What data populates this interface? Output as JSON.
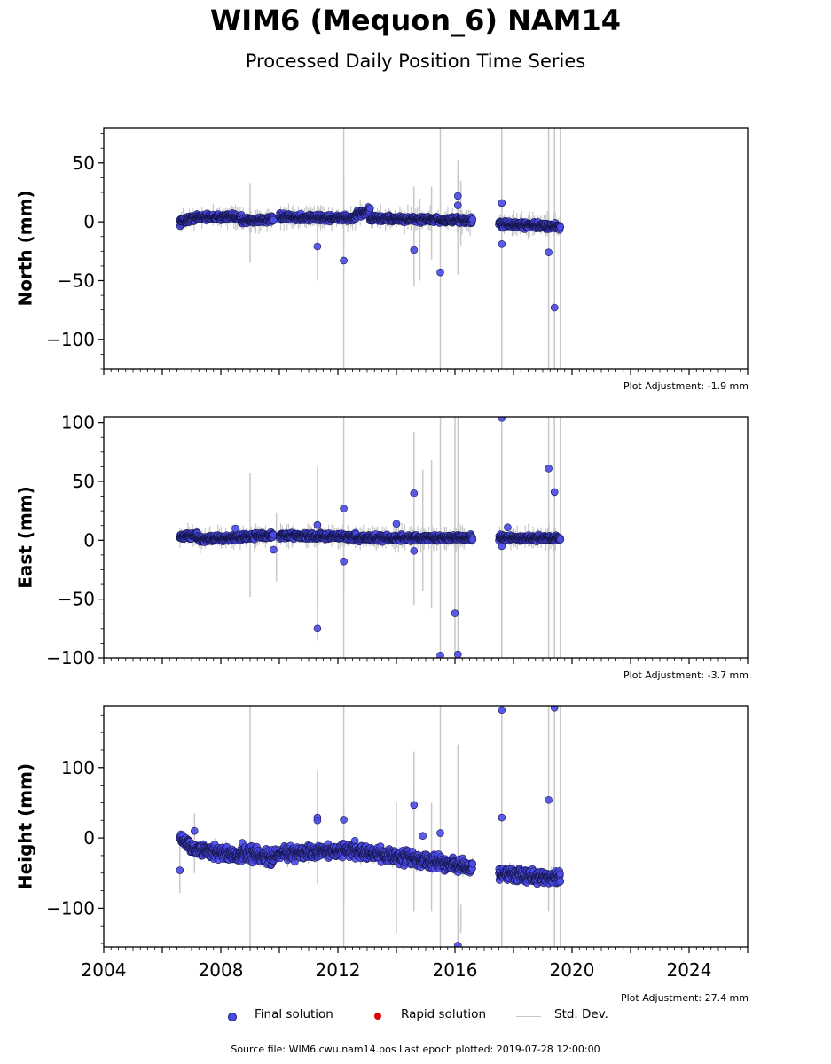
{
  "title": "WIM6 (Mequon_6) NAM14",
  "subtitle": "Processed Daily Position Time Series",
  "legend": {
    "final": "Final solution",
    "rapid": "Rapid solution",
    "std": "Std. Dev.",
    "final_color": "#4a4ae8",
    "rapid_color": "#e00000",
    "std_color": "#c8c8c8"
  },
  "footer": "Source file: WIM6.cwu.nam14.pos  Last epoch plotted: 2019-07-28 12:00:00",
  "chart_data": [
    {
      "type": "scatter",
      "ylabel": "North (mm)",
      "adjustment": "Plot Adjustment: -1.9 mm",
      "xlim": [
        2004.0,
        2026.0
      ],
      "ylim": [
        -125,
        80
      ],
      "yticks": [
        50,
        0,
        -50,
        -100
      ],
      "ytick_labels": [
        "50",
        "0",
        "−50",
        "−100"
      ],
      "segments": [
        {
          "start": 2006.6,
          "end": 2007.2,
          "y0": 0,
          "y1": 4,
          "spread": 2
        },
        {
          "start": 2007.2,
          "end": 2008.7,
          "y0": 4,
          "y1": 4,
          "spread": 2
        },
        {
          "start": 2008.7,
          "end": 2009.8,
          "y0": 1,
          "y1": 2,
          "spread": 2
        },
        {
          "start": 2010.0,
          "end": 2012.6,
          "y0": 4,
          "y1": 3,
          "spread": 2
        },
        {
          "start": 2012.6,
          "end": 2013.1,
          "y0": 6,
          "y1": 10,
          "spread": 2
        },
        {
          "start": 2013.1,
          "end": 2016.6,
          "y0": 3,
          "y1": 1,
          "spread": 2
        },
        {
          "start": 2017.5,
          "end": 2019.6,
          "y0": -2,
          "y1": -4,
          "spread": 2
        }
      ],
      "outliers": [
        [
          2011.3,
          -21
        ],
        [
          2012.2,
          -33
        ],
        [
          2014.6,
          -24
        ],
        [
          2015.5,
          -43
        ],
        [
          2016.1,
          14
        ],
        [
          2016.1,
          22
        ],
        [
          2017.6,
          16
        ],
        [
          2017.6,
          -19
        ],
        [
          2019.2,
          -26
        ],
        [
          2019.4,
          -73
        ]
      ],
      "errorbars": [
        [
          2009.0,
          -35,
          33
        ],
        [
          2011.3,
          -50,
          5
        ],
        [
          2012.2,
          -125,
          80
        ],
        [
          2012.2,
          -20,
          38
        ],
        [
          2014.6,
          -55,
          30
        ],
        [
          2014.8,
          -50,
          20
        ],
        [
          2015.2,
          -32,
          30
        ],
        [
          2015.5,
          -125,
          80
        ],
        [
          2016.1,
          -45,
          52
        ],
        [
          2016.2,
          -20,
          35
        ],
        [
          2017.6,
          -125,
          80
        ],
        [
          2017.6,
          -78,
          40
        ],
        [
          2019.2,
          -125,
          80
        ],
        [
          2019.4,
          -125,
          80
        ],
        [
          2019.6,
          -125,
          80
        ]
      ]
    },
    {
      "type": "scatter",
      "ylabel": "East (mm)",
      "adjustment": "Plot Adjustment: -3.7 mm",
      "xlim": [
        2004.0,
        2026.0
      ],
      "ylim": [
        -100,
        105
      ],
      "yticks": [
        100,
        50,
        0,
        -50,
        -100
      ],
      "ytick_labels": [
        "100",
        "50",
        "0",
        "−50",
        "−100"
      ],
      "segments": [
        {
          "start": 2006.6,
          "end": 2007.2,
          "y0": 3,
          "y1": 5,
          "spread": 2
        },
        {
          "start": 2007.2,
          "end": 2008.7,
          "y0": 1,
          "y1": 2,
          "spread": 2
        },
        {
          "start": 2008.7,
          "end": 2009.8,
          "y0": 3,
          "y1": 4,
          "spread": 2
        },
        {
          "start": 2010.0,
          "end": 2012.6,
          "y0": 4,
          "y1": 3,
          "spread": 2
        },
        {
          "start": 2012.6,
          "end": 2016.6,
          "y0": 2,
          "y1": 2,
          "spread": 2
        },
        {
          "start": 2017.5,
          "end": 2019.6,
          "y0": 2,
          "y1": 2,
          "spread": 2
        }
      ],
      "outliers": [
        [
          2008.5,
          10
        ],
        [
          2009.8,
          -8
        ],
        [
          2011.3,
          13
        ],
        [
          2011.3,
          -75
        ],
        [
          2012.2,
          27
        ],
        [
          2012.2,
          -18
        ],
        [
          2014.0,
          14
        ],
        [
          2014.6,
          40
        ],
        [
          2014.6,
          -9
        ],
        [
          2015.5,
          -98
        ],
        [
          2016.0,
          -62
        ],
        [
          2016.1,
          -97
        ],
        [
          2017.6,
          104
        ],
        [
          2017.6,
          -5
        ],
        [
          2017.8,
          11
        ],
        [
          2019.2,
          61
        ],
        [
          2019.4,
          41
        ]
      ],
      "errorbars": [
        [
          2009.0,
          -48,
          57
        ],
        [
          2009.9,
          -35,
          23
        ],
        [
          2011.3,
          -55,
          62
        ],
        [
          2011.3,
          -85,
          -25
        ],
        [
          2012.2,
          -100,
          105
        ],
        [
          2012.2,
          -42,
          8
        ],
        [
          2014.6,
          -55,
          92
        ],
        [
          2014.9,
          -43,
          60
        ],
        [
          2015.2,
          -58,
          68
        ],
        [
          2015.5,
          -100,
          105
        ],
        [
          2016.0,
          -100,
          105
        ],
        [
          2016.1,
          -100,
          105
        ],
        [
          2017.6,
          -100,
          105
        ],
        [
          2017.6,
          -100,
          88
        ],
        [
          2019.2,
          -100,
          105
        ],
        [
          2019.4,
          -100,
          105
        ],
        [
          2019.6,
          -100,
          105
        ]
      ]
    },
    {
      "type": "scatter",
      "ylabel": "Height (mm)",
      "adjustment": "Plot Adjustment: 27.4 mm",
      "xlim": [
        2004.0,
        2026.0
      ],
      "ylim": [
        -155,
        188
      ],
      "yticks": [
        100,
        0,
        -100
      ],
      "ytick_labels": [
        "100",
        "0",
        "−100"
      ],
      "xticks": [
        2004,
        2008,
        2012,
        2016,
        2020,
        2024
      ],
      "xtick_labels": [
        "2004",
        "2008",
        "2012",
        "2016",
        "2020",
        "2024"
      ],
      "segments": [
        {
          "start": 2006.6,
          "end": 2007.0,
          "y0": 0,
          "y1": -12,
          "spread": 7
        },
        {
          "start": 2007.0,
          "end": 2008.7,
          "y0": -15,
          "y1": -25,
          "spread": 7
        },
        {
          "start": 2008.7,
          "end": 2009.8,
          "y0": -20,
          "y1": -28,
          "spread": 8
        },
        {
          "start": 2009.8,
          "end": 2012.6,
          "y0": -24,
          "y1": -16,
          "spread": 7
        },
        {
          "start": 2012.6,
          "end": 2016.6,
          "y0": -18,
          "y1": -42,
          "spread": 7
        },
        {
          "start": 2017.5,
          "end": 2019.6,
          "y0": -50,
          "y1": -58,
          "spread": 7
        }
      ],
      "outliers": [
        [
          2006.6,
          -46
        ],
        [
          2007.1,
          10
        ],
        [
          2011.3,
          29
        ],
        [
          2011.3,
          25
        ],
        [
          2012.2,
          26
        ],
        [
          2014.6,
          47
        ],
        [
          2014.9,
          3
        ],
        [
          2015.5,
          7
        ],
        [
          2016.1,
          -153
        ],
        [
          2017.6,
          182
        ],
        [
          2017.6,
          29
        ],
        [
          2019.2,
          54
        ],
        [
          2019.4,
          185
        ]
      ],
      "errorbars": [
        [
          2006.6,
          -78,
          0
        ],
        [
          2007.1,
          -50,
          35
        ],
        [
          2009.0,
          -155,
          188
        ],
        [
          2011.3,
          -65,
          95
        ],
        [
          2012.2,
          -155,
          188
        ],
        [
          2012.2,
          -90,
          40
        ],
        [
          2014.0,
          -135,
          50
        ],
        [
          2014.6,
          -105,
          123
        ],
        [
          2014.6,
          -40,
          70
        ],
        [
          2015.2,
          -105,
          50
        ],
        [
          2015.5,
          -155,
          188
        ],
        [
          2016.1,
          -155,
          133
        ],
        [
          2016.2,
          -135,
          -95
        ],
        [
          2017.6,
          -155,
          188
        ],
        [
          2019.2,
          -105,
          188
        ],
        [
          2019.4,
          -155,
          188
        ],
        [
          2019.6,
          -155,
          188
        ]
      ]
    }
  ]
}
